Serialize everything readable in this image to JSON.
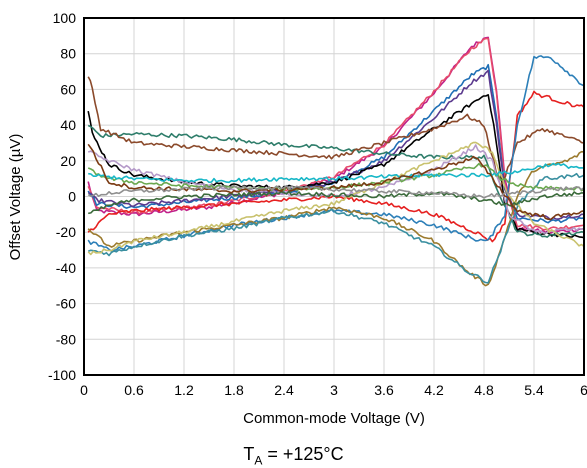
{
  "chart_data": {
    "type": "line",
    "xlabel": "Common-mode Voltage (V)",
    "ylabel": "Offset Voltage (µV)",
    "xlim": [
      0,
      6
    ],
    "ylim": [
      -100,
      100
    ],
    "x_ticks": [
      "0",
      "0.6",
      "1.2",
      "1.8",
      "2.4",
      "3",
      "3.6",
      "4.2",
      "4.8",
      "5.4",
      "6"
    ],
    "y_ticks": [
      "-100",
      "-80",
      "-60",
      "-40",
      "-20",
      "0",
      "20",
      "40",
      "60",
      "80",
      "100"
    ],
    "grid": true,
    "series": [
      {
        "color": "#c0208a",
        "points": [
          [
            0.05,
            8
          ],
          [
            0.15,
            -8
          ],
          [
            0.6,
            -10
          ],
          [
            1.5,
            -6
          ],
          [
            2.4,
            2
          ],
          [
            3,
            10
          ],
          [
            3.6,
            28
          ],
          [
            4.2,
            58
          ],
          [
            4.65,
            84
          ],
          [
            4.85,
            90
          ],
          [
            4.95,
            60
          ],
          [
            5.05,
            10
          ],
          [
            5.2,
            -18
          ],
          [
            5.6,
            -20
          ],
          [
            6,
            -18
          ]
        ]
      },
      {
        "color": "#e64a6a",
        "points": [
          [
            0.05,
            6
          ],
          [
            0.15,
            -6
          ],
          [
            0.6,
            -9
          ],
          [
            1.5,
            -5
          ],
          [
            2.4,
            3
          ],
          [
            3,
            11
          ],
          [
            3.6,
            29
          ],
          [
            4.2,
            59
          ],
          [
            4.65,
            83
          ],
          [
            4.85,
            89
          ],
          [
            4.95,
            58
          ],
          [
            5.05,
            8
          ],
          [
            5.2,
            -16
          ],
          [
            5.6,
            -18
          ],
          [
            6,
            -16
          ]
        ]
      },
      {
        "color": "#1f6fb5",
        "points": [
          [
            0.05,
            4
          ],
          [
            0.15,
            -4
          ],
          [
            0.6,
            -6
          ],
          [
            1.5,
            -2
          ],
          [
            2.4,
            2
          ],
          [
            3,
            8
          ],
          [
            3.6,
            22
          ],
          [
            4.2,
            48
          ],
          [
            4.65,
            68
          ],
          [
            4.85,
            73
          ],
          [
            4.95,
            45
          ],
          [
            5.05,
            5
          ],
          [
            5.2,
            -12
          ],
          [
            5.6,
            -14
          ],
          [
            6,
            -12
          ]
        ]
      },
      {
        "color": "#5b3a8e",
        "points": [
          [
            0.05,
            2
          ],
          [
            0.15,
            -2
          ],
          [
            0.6,
            -5
          ],
          [
            1.5,
            -1
          ],
          [
            2.4,
            3
          ],
          [
            3,
            8
          ],
          [
            3.6,
            20
          ],
          [
            4.2,
            44
          ],
          [
            4.65,
            64
          ],
          [
            4.85,
            70
          ],
          [
            4.95,
            40
          ],
          [
            5.05,
            4
          ],
          [
            5.2,
            -10
          ],
          [
            5.6,
            -12
          ],
          [
            6,
            -10
          ]
        ]
      },
      {
        "color": "#000000",
        "points": [
          [
            0.05,
            48
          ],
          [
            0.1,
            35
          ],
          [
            0.3,
            18
          ],
          [
            0.6,
            12
          ],
          [
            1.2,
            8
          ],
          [
            1.8,
            6
          ],
          [
            2.4,
            5
          ],
          [
            3,
            8
          ],
          [
            3.6,
            18
          ],
          [
            4.2,
            38
          ],
          [
            4.65,
            52
          ],
          [
            4.85,
            58
          ],
          [
            4.95,
            30
          ],
          [
            5.05,
            -5
          ],
          [
            5.2,
            -18
          ],
          [
            5.4,
            -20
          ],
          [
            5.8,
            -22
          ],
          [
            6,
            -23
          ]
        ]
      },
      {
        "color": "#2e7d6a",
        "points": [
          [
            0.05,
            40
          ],
          [
            0.2,
            34
          ],
          [
            0.6,
            35
          ],
          [
            1.2,
            34
          ],
          [
            1.8,
            32
          ],
          [
            2.4,
            29
          ],
          [
            3,
            27
          ],
          [
            3.6,
            24
          ],
          [
            4.2,
            22
          ],
          [
            4.8,
            22
          ],
          [
            5,
            0
          ],
          [
            5.2,
            -20
          ],
          [
            5.5,
            -22
          ],
          [
            6,
            -20
          ]
        ]
      },
      {
        "color": "#8b4a2b",
        "points": [
          [
            0.05,
            68
          ],
          [
            0.1,
            60
          ],
          [
            0.2,
            38
          ],
          [
            0.6,
            30
          ],
          [
            1.2,
            28
          ],
          [
            1.8,
            26
          ],
          [
            2.4,
            24
          ],
          [
            3,
            22
          ],
          [
            3.6,
            30
          ],
          [
            4.2,
            38
          ],
          [
            4.6,
            45
          ],
          [
            4.8,
            40
          ],
          [
            5,
            5
          ],
          [
            5.2,
            30
          ],
          [
            5.5,
            38
          ],
          [
            6,
            30
          ]
        ]
      },
      {
        "color": "#e62020",
        "points": [
          [
            0.05,
            -20
          ],
          [
            0.3,
            -10
          ],
          [
            0.6,
            -8
          ],
          [
            1.2,
            -6
          ],
          [
            1.8,
            -4
          ],
          [
            2.4,
            -2
          ],
          [
            3,
            0
          ],
          [
            3.6,
            -4
          ],
          [
            4.2,
            -10
          ],
          [
            4.7,
            -20
          ],
          [
            4.9,
            -25
          ],
          [
            5.05,
            -15
          ],
          [
            5.2,
            45
          ],
          [
            5.4,
            58
          ],
          [
            5.8,
            52
          ],
          [
            6,
            50
          ]
        ]
      },
      {
        "color": "#2c7fb8",
        "points": [
          [
            0.05,
            -25
          ],
          [
            0.3,
            -30
          ],
          [
            0.6,
            -28
          ],
          [
            1.2,
            -22
          ],
          [
            1.8,
            -16
          ],
          [
            2.4,
            -12
          ],
          [
            3,
            -8
          ],
          [
            3.6,
            -10
          ],
          [
            4.2,
            -16
          ],
          [
            4.7,
            -24
          ],
          [
            4.85,
            -25
          ],
          [
            5.05,
            -10
          ],
          [
            5.2,
            40
          ],
          [
            5.4,
            78
          ],
          [
            5.6,
            78
          ],
          [
            5.8,
            70
          ],
          [
            6,
            62
          ]
        ]
      },
      {
        "color": "#9b7a2e",
        "points": [
          [
            0.05,
            -18
          ],
          [
            0.3,
            -28
          ],
          [
            0.6,
            -25
          ],
          [
            1.2,
            -20
          ],
          [
            1.8,
            -16
          ],
          [
            2.4,
            -12
          ],
          [
            3,
            -6
          ],
          [
            3.6,
            -12
          ],
          [
            4.2,
            -25
          ],
          [
            4.6,
            -42
          ],
          [
            4.85,
            -50
          ],
          [
            5,
            -30
          ],
          [
            5.2,
            0
          ],
          [
            5.4,
            15
          ],
          [
            5.8,
            20
          ],
          [
            6,
            25
          ]
        ]
      },
      {
        "color": "#3a8fa0",
        "points": [
          [
            0.05,
            -30
          ],
          [
            0.3,
            -32
          ],
          [
            0.6,
            -28
          ],
          [
            1.2,
            -22
          ],
          [
            1.8,
            -18
          ],
          [
            2.4,
            -12
          ],
          [
            3,
            -8
          ],
          [
            3.6,
            -15
          ],
          [
            4.2,
            -28
          ],
          [
            4.6,
            -42
          ],
          [
            4.85,
            -48
          ],
          [
            5,
            -30
          ],
          [
            5.2,
            -5
          ],
          [
            5.5,
            10
          ],
          [
            6,
            12
          ]
        ]
      },
      {
        "color": "#b59ac9",
        "points": [
          [
            0.05,
            25
          ],
          [
            0.3,
            20
          ],
          [
            0.6,
            15
          ],
          [
            1.2,
            8
          ],
          [
            1.8,
            4
          ],
          [
            2.4,
            2
          ],
          [
            3,
            0
          ],
          [
            3.6,
            5
          ],
          [
            4.2,
            15
          ],
          [
            4.7,
            28
          ],
          [
            4.9,
            20
          ],
          [
            5.1,
            -10
          ],
          [
            5.4,
            -20
          ],
          [
            6,
            -18
          ]
        ]
      },
      {
        "color": "#c9c26e",
        "points": [
          [
            0.05,
            -32
          ],
          [
            0.3,
            -30
          ],
          [
            0.6,
            -25
          ],
          [
            1.2,
            -20
          ],
          [
            1.8,
            -14
          ],
          [
            2.4,
            -8
          ],
          [
            3,
            -4
          ],
          [
            3.6,
            8
          ],
          [
            4.2,
            20
          ],
          [
            4.7,
            30
          ],
          [
            4.9,
            25
          ],
          [
            5.1,
            0
          ],
          [
            5.4,
            -15
          ],
          [
            6,
            -28
          ]
        ]
      },
      {
        "color": "#6aa84f",
        "points": [
          [
            0.05,
            15
          ],
          [
            0.3,
            10
          ],
          [
            0.6,
            8
          ],
          [
            1.2,
            6
          ],
          [
            1.8,
            5
          ],
          [
            2.4,
            4
          ],
          [
            3,
            5
          ],
          [
            3.6,
            8
          ],
          [
            4.2,
            12
          ],
          [
            4.8,
            18
          ],
          [
            5,
            10
          ],
          [
            5.3,
            5
          ],
          [
            6,
            4
          ]
        ]
      },
      {
        "color": "#18b7c7",
        "points": [
          [
            0.05,
            12
          ],
          [
            0.3,
            11
          ],
          [
            0.6,
            10
          ],
          [
            1.2,
            9
          ],
          [
            1.8,
            9
          ],
          [
            2.4,
            10
          ],
          [
            3,
            10
          ],
          [
            3.6,
            11
          ],
          [
            4.2,
            12
          ],
          [
            4.8,
            12
          ],
          [
            5.2,
            14
          ],
          [
            5.6,
            18
          ],
          [
            6,
            16
          ]
        ]
      },
      {
        "color": "#3b6b3b",
        "points": [
          [
            0.05,
            -10
          ],
          [
            0.3,
            -5
          ],
          [
            0.6,
            -2
          ],
          [
            1.2,
            0
          ],
          [
            1.8,
            1
          ],
          [
            2.4,
            2
          ],
          [
            3,
            1
          ],
          [
            3.6,
            0
          ],
          [
            4.2,
            2
          ],
          [
            4.8,
            -2
          ],
          [
            5.1,
            -5
          ],
          [
            5.5,
            0
          ],
          [
            6,
            2
          ]
        ]
      },
      {
        "color": "#7a3a12",
        "points": [
          [
            0.05,
            30
          ],
          [
            0.3,
            8
          ],
          [
            0.6,
            5
          ],
          [
            1.2,
            4
          ],
          [
            1.8,
            3
          ],
          [
            2.4,
            4
          ],
          [
            3,
            5
          ],
          [
            3.6,
            8
          ],
          [
            4.2,
            15
          ],
          [
            4.7,
            22
          ],
          [
            4.9,
            10
          ],
          [
            5.2,
            -8
          ],
          [
            5.6,
            -12
          ],
          [
            6,
            -8
          ]
        ]
      },
      {
        "color": "#8f8f8f",
        "points": [
          [
            0.05,
            0
          ],
          [
            0.3,
            2
          ],
          [
            0.6,
            3
          ],
          [
            1.2,
            4
          ],
          [
            1.8,
            5
          ],
          [
            2.4,
            5
          ],
          [
            3,
            4
          ],
          [
            3.6,
            3
          ],
          [
            4.2,
            2
          ],
          [
            4.8,
            0
          ],
          [
            5.2,
            2
          ],
          [
            5.6,
            4
          ],
          [
            6,
            5
          ]
        ]
      }
    ]
  },
  "caption": {
    "main": "T",
    "sub": "A",
    "rest": " = +125°C"
  }
}
